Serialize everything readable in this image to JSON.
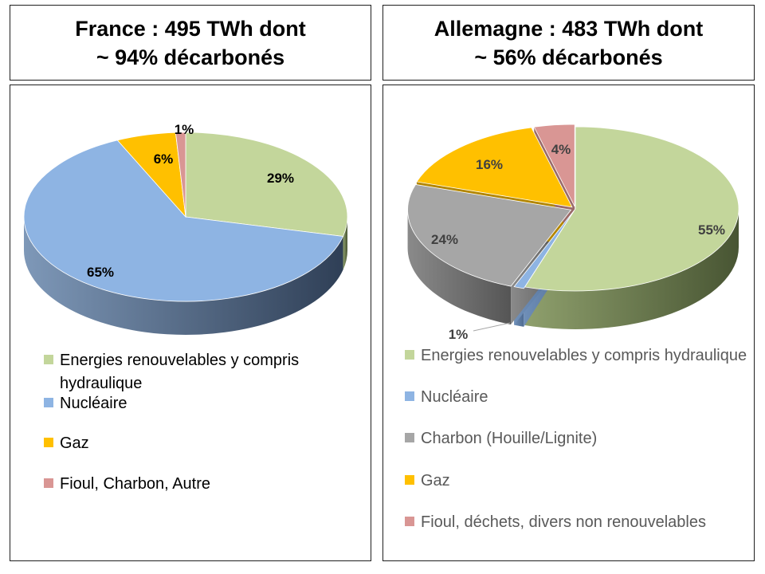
{
  "france": {
    "title_line1": "France : 495 TWh dont",
    "title_line2": "~ 94% décarbonés"
  },
  "germany": {
    "title_line1": "Allemagne : 483 TWh dont",
    "title_line2": "~ 56% décarbonés"
  },
  "chart_data": [
    {
      "type": "pie",
      "title": "France : 495 TWh dont ~ 94% décarbonés",
      "categories": [
        "Energies renouvelables y compris hydraulique",
        "Nucléaire",
        "Gaz",
        "Fioul, Charbon, Autre"
      ],
      "values": [
        29,
        65,
        6,
        1
      ],
      "labels": [
        "29%",
        "65%",
        "6%",
        "1%"
      ],
      "colors": [
        "#c3d69b",
        "#8eb4e3",
        "#ffc000",
        "#d99694"
      ],
      "label_color": "#000000",
      "legend_placement": "bottom"
    },
    {
      "type": "pie",
      "title": "Allemagne : 483 TWh dont ~ 56% décarbonés",
      "categories": [
        "Energies renouvelables y compris hydraulique",
        "Nucléaire",
        "Charbon (Houille/Lignite)",
        "Gaz",
        "Fioul, déchets, divers non renouvelables"
      ],
      "values": [
        55,
        1,
        24,
        16,
        4
      ],
      "labels": [
        "55%",
        "1%",
        "24%",
        "16%",
        "4%"
      ],
      "colors": [
        "#c3d69b",
        "#8eb4e3",
        "#a6a6a6",
        "#ffc000",
        "#d99694"
      ],
      "label_color": "#404040",
      "legend_placement": "bottom"
    }
  ]
}
